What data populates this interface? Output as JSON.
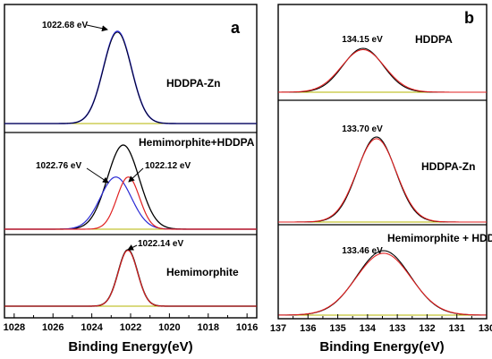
{
  "chart_data": [
    {
      "type": "line",
      "panel_letter": "a",
      "xlabel": "Binding Energy(eV)",
      "x_ticks": [
        1028,
        1026,
        1024,
        1022,
        1020,
        1018,
        1016
      ],
      "xlim": [
        1028.5,
        1015.5
      ],
      "x_reversed": true,
      "subpanels": [
        {
          "label": "HDDPA-Zn",
          "baseline_color": "#b5b500",
          "peaks": [
            {
              "center": 1022.68,
              "height": 1.0,
              "sigma": 0.72,
              "color": "#2a2ad4",
              "stroke_width": 1.6
            },
            {
              "center": 1022.68,
              "height": 0.99,
              "sigma": 0.72,
              "color": "#000000",
              "stroke_width": 0.8
            }
          ],
          "annotations": [
            {
              "text": "1022.68 eV",
              "x": 1022.68
            }
          ]
        },
        {
          "label": "Hemimorphite+HDDPA",
          "baseline_color": "#b5b500",
          "peaks": [
            {
              "center": 1022.38,
              "height": 1.0,
              "sigma": 0.82,
              "color": "#000000",
              "stroke_width": 1.3
            },
            {
              "center": 1022.76,
              "height": 0.62,
              "sigma": 0.8,
              "color": "#2a2ad4",
              "stroke_width": 1.2
            },
            {
              "center": 1022.12,
              "height": 0.62,
              "sigma": 0.58,
              "color": "#e02020",
              "stroke_width": 1.2
            }
          ],
          "annotations": [
            {
              "text": "1022.76 eV",
              "x": 1022.76
            },
            {
              "text": "1022.12 eV",
              "x": 1022.12
            }
          ]
        },
        {
          "label": "Hemimorphite",
          "baseline_color": "#b5b500",
          "peaks": [
            {
              "center": 1022.14,
              "height": 1.0,
              "sigma": 0.5,
              "color": "#000000",
              "stroke_width": 1.5
            },
            {
              "center": 1022.14,
              "height": 0.99,
              "sigma": 0.5,
              "color": "#e02020",
              "stroke_width": 1.1
            }
          ],
          "annotations": [
            {
              "text": "1022.14 eV",
              "x": 1022.14
            }
          ]
        }
      ]
    },
    {
      "type": "line",
      "panel_letter": "b",
      "xlabel": "Binding Energy(eV)",
      "x_ticks": [
        137,
        136,
        135,
        134,
        133,
        132,
        131,
        130
      ],
      "xlim": [
        137,
        130
      ],
      "x_reversed": true,
      "subpanels": [
        {
          "label": "HDDPA",
          "baseline_color": "#b5b500",
          "peaks": [
            {
              "center": 134.15,
              "height": 1.0,
              "sigma": 0.68,
              "color": "#000000",
              "stroke_width": 1.1
            },
            {
              "center": 134.15,
              "height": 0.97,
              "sigma": 0.72,
              "color": "#e02020",
              "stroke_width": 1.1
            }
          ],
          "annotations": [
            {
              "text": "134.15 eV",
              "x": 134.15
            }
          ]
        },
        {
          "label": "HDDPA-Zn",
          "baseline_color": "#b5b500",
          "peaks": [
            {
              "center": 133.7,
              "height": 1.0,
              "sigma": 0.64,
              "color": "#000000",
              "stroke_width": 1.1
            },
            {
              "center": 133.7,
              "height": 0.98,
              "sigma": 0.66,
              "color": "#e02020",
              "stroke_width": 1.1
            }
          ],
          "annotations": [
            {
              "text": "133.70 eV",
              "x": 133.7
            }
          ]
        },
        {
          "label": "Hemimorphite + HDDPA",
          "baseline_color": "#b5b500",
          "peaks": [
            {
              "center": 133.46,
              "height": 1.0,
              "sigma": 0.9,
              "color": "#000000",
              "stroke_width": 1.1
            },
            {
              "center": 133.46,
              "height": 0.96,
              "sigma": 0.92,
              "color": "#e02020",
              "stroke_width": 1.1
            }
          ],
          "annotations": [
            {
              "text": "133.46 eV",
              "x": 133.46
            }
          ]
        }
      ]
    }
  ]
}
